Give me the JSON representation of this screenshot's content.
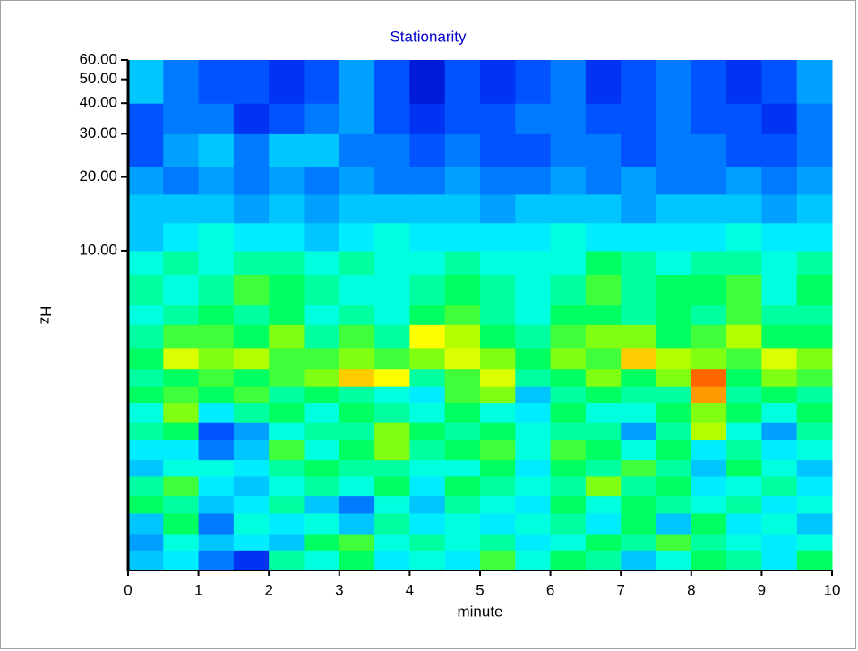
{
  "chart_data": {
    "type": "heatmap",
    "title": "Stationarity",
    "title_color": "#0000cc",
    "x_label": "minute",
    "y_label": "Hz",
    "xlim": [
      0,
      10
    ],
    "xticks": [
      0,
      1,
      2,
      3,
      4,
      5,
      6,
      7,
      8,
      9,
      10
    ],
    "ylim": [
      0.5,
      60
    ],
    "y_log": true,
    "yticks": [
      {
        "value": 10,
        "label": "10.00"
      },
      {
        "value": 20,
        "label": "20.00"
      },
      {
        "value": 30,
        "label": "30.00"
      },
      {
        "value": 40,
        "label": "40.00"
      },
      {
        "value": 50,
        "label": "50.00"
      },
      {
        "value": 60,
        "label": "60.00"
      }
    ],
    "x_edges": [
      0,
      0.5,
      1,
      1.5,
      2,
      2.5,
      3,
      3.5,
      4,
      4.5,
      5,
      5.5,
      6,
      6.5,
      7,
      7.5,
      8,
      8.5,
      9,
      9.5,
      10
    ],
    "y_edges": [
      0.5,
      0.6,
      0.7,
      0.85,
      1,
      1.2,
      1.4,
      1.7,
      2,
      2.4,
      2.8,
      3.3,
      4,
      5,
      6,
      8,
      10,
      13,
      17,
      22,
      30,
      40,
      60
    ],
    "zlim": [
      0,
      1
    ],
    "colormap": [
      "#0000c0",
      "#0040ff",
      "#00a0ff",
      "#00ffff",
      "#00ff60",
      "#a0ff00",
      "#ffff00",
      "#ff8000",
      "#ff0000"
    ],
    "z": [
      [
        0.3,
        0.35,
        0.2,
        0.1,
        0.45,
        0.4,
        0.5,
        0.35,
        0.4,
        0.35,
        0.55,
        0.4,
        0.5,
        0.45,
        0.3,
        0.4,
        0.5,
        0.45,
        0.35,
        0.5
      ],
      [
        0.25,
        0.4,
        0.3,
        0.35,
        0.3,
        0.5,
        0.55,
        0.4,
        0.45,
        0.4,
        0.45,
        0.35,
        0.4,
        0.5,
        0.45,
        0.55,
        0.45,
        0.4,
        0.35,
        0.4
      ],
      [
        0.3,
        0.5,
        0.2,
        0.4,
        0.35,
        0.4,
        0.3,
        0.45,
        0.35,
        0.4,
        0.35,
        0.4,
        0.45,
        0.35,
        0.5,
        0.3,
        0.5,
        0.35,
        0.4,
        0.3
      ],
      [
        0.5,
        0.45,
        0.3,
        0.35,
        0.45,
        0.3,
        0.2,
        0.4,
        0.3,
        0.45,
        0.4,
        0.35,
        0.5,
        0.4,
        0.5,
        0.45,
        0.4,
        0.45,
        0.35,
        0.4
      ],
      [
        0.45,
        0.55,
        0.35,
        0.3,
        0.4,
        0.45,
        0.4,
        0.5,
        0.35,
        0.5,
        0.45,
        0.4,
        0.45,
        0.6,
        0.45,
        0.5,
        0.35,
        0.4,
        0.45,
        0.35
      ],
      [
        0.3,
        0.4,
        0.4,
        0.35,
        0.45,
        0.5,
        0.45,
        0.45,
        0.4,
        0.4,
        0.5,
        0.35,
        0.5,
        0.45,
        0.55,
        0.45,
        0.3,
        0.5,
        0.4,
        0.3
      ],
      [
        0.35,
        0.35,
        0.2,
        0.3,
        0.55,
        0.4,
        0.5,
        0.6,
        0.45,
        0.5,
        0.55,
        0.4,
        0.55,
        0.5,
        0.4,
        0.5,
        0.35,
        0.45,
        0.35,
        0.4
      ],
      [
        0.45,
        0.5,
        0.15,
        0.25,
        0.4,
        0.45,
        0.45,
        0.6,
        0.5,
        0.45,
        0.5,
        0.4,
        0.45,
        0.45,
        0.25,
        0.45,
        0.65,
        0.4,
        0.25,
        0.45
      ],
      [
        0.4,
        0.6,
        0.35,
        0.45,
        0.5,
        0.4,
        0.5,
        0.45,
        0.4,
        0.5,
        0.4,
        0.35,
        0.5,
        0.4,
        0.4,
        0.5,
        0.6,
        0.5,
        0.4,
        0.5
      ],
      [
        0.5,
        0.55,
        0.5,
        0.55,
        0.45,
        0.5,
        0.45,
        0.4,
        0.35,
        0.55,
        0.6,
        0.3,
        0.45,
        0.5,
        0.45,
        0.45,
        0.85,
        0.45,
        0.5,
        0.45
      ],
      [
        0.45,
        0.5,
        0.55,
        0.5,
        0.55,
        0.6,
        0.8,
        0.75,
        0.45,
        0.55,
        0.7,
        0.45,
        0.5,
        0.6,
        0.5,
        0.6,
        0.9,
        0.5,
        0.6,
        0.55
      ],
      [
        0.5,
        0.7,
        0.6,
        0.65,
        0.55,
        0.55,
        0.6,
        0.55,
        0.6,
        0.7,
        0.6,
        0.5,
        0.6,
        0.55,
        0.8,
        0.65,
        0.6,
        0.55,
        0.7,
        0.6
      ],
      [
        0.45,
        0.55,
        0.55,
        0.5,
        0.6,
        0.45,
        0.55,
        0.45,
        0.75,
        0.65,
        0.5,
        0.45,
        0.55,
        0.6,
        0.6,
        0.5,
        0.55,
        0.65,
        0.5,
        0.5
      ],
      [
        0.4,
        0.45,
        0.5,
        0.45,
        0.5,
        0.4,
        0.45,
        0.4,
        0.5,
        0.55,
        0.45,
        0.4,
        0.5,
        0.5,
        0.45,
        0.5,
        0.45,
        0.55,
        0.45,
        0.45
      ],
      [
        0.45,
        0.4,
        0.45,
        0.55,
        0.5,
        0.45,
        0.4,
        0.4,
        0.45,
        0.5,
        0.45,
        0.4,
        0.45,
        0.55,
        0.45,
        0.5,
        0.5,
        0.55,
        0.4,
        0.5
      ],
      [
        0.4,
        0.45,
        0.4,
        0.45,
        0.45,
        0.4,
        0.45,
        0.4,
        0.4,
        0.45,
        0.4,
        0.4,
        0.4,
        0.5,
        0.45,
        0.4,
        0.45,
        0.45,
        0.4,
        0.45
      ],
      [
        0.3,
        0.35,
        0.4,
        0.35,
        0.35,
        0.3,
        0.35,
        0.4,
        0.35,
        0.35,
        0.35,
        0.35,
        0.4,
        0.35,
        0.35,
        0.35,
        0.35,
        0.4,
        0.35,
        0.35
      ],
      [
        0.3,
        0.3,
        0.3,
        0.25,
        0.3,
        0.25,
        0.3,
        0.3,
        0.3,
        0.3,
        0.25,
        0.3,
        0.3,
        0.3,
        0.25,
        0.3,
        0.3,
        0.3,
        0.25,
        0.3
      ],
      [
        0.25,
        0.2,
        0.25,
        0.2,
        0.25,
        0.2,
        0.25,
        0.2,
        0.2,
        0.25,
        0.2,
        0.2,
        0.25,
        0.2,
        0.25,
        0.2,
        0.2,
        0.25,
        0.2,
        0.25
      ],
      [
        0.15,
        0.25,
        0.3,
        0.2,
        0.3,
        0.3,
        0.2,
        0.2,
        0.15,
        0.2,
        0.15,
        0.15,
        0.2,
        0.2,
        0.15,
        0.2,
        0.2,
        0.15,
        0.15,
        0.2
      ],
      [
        0.15,
        0.2,
        0.2,
        0.1,
        0.15,
        0.2,
        0.25,
        0.15,
        0.1,
        0.15,
        0.15,
        0.2,
        0.2,
        0.15,
        0.15,
        0.2,
        0.15,
        0.15,
        0.1,
        0.2
      ],
      [
        0.3,
        0.2,
        0.15,
        0.15,
        0.1,
        0.15,
        0.25,
        0.15,
        0.05,
        0.15,
        0.1,
        0.15,
        0.2,
        0.1,
        0.15,
        0.2,
        0.15,
        0.1,
        0.15,
        0.25
      ]
    ]
  }
}
